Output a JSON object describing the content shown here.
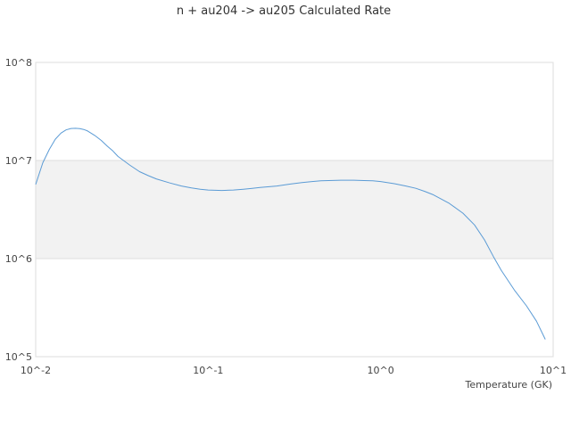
{
  "chart_data": {
    "type": "line",
    "title": "n + au204 -> au205 Calculated Rate",
    "xlabel": "Temperature (GK)",
    "ylabel": "",
    "x_scale": "log",
    "y_scale": "log",
    "xlim": [
      0.01,
      10
    ],
    "ylim": [
      100000,
      100000000
    ],
    "x_tick_labels": [
      "10^-2",
      "10^-1",
      "10^0",
      "10^1"
    ],
    "y_tick_labels": [
      "10^5",
      "10^6",
      "10^7",
      "10^8"
    ],
    "x_tick_values": [
      0.01,
      0.1,
      1,
      10
    ],
    "y_tick_values": [
      100000,
      1000000,
      10000000,
      100000000
    ],
    "alternate_band": [
      1000000,
      10000000
    ],
    "grid": true,
    "legend": "none",
    "colors": {
      "line": "#5b9bd5",
      "band": "#f2f2f2",
      "grid": "#dddddd"
    },
    "series": [
      {
        "x": [
          0.01,
          0.011,
          0.012,
          0.013,
          0.014,
          0.015,
          0.016,
          0.017,
          0.018,
          0.019,
          0.02,
          0.022,
          0.024,
          0.026,
          0.028,
          0.03,
          0.035,
          0.04,
          0.045,
          0.05,
          0.06,
          0.07,
          0.08,
          0.09,
          0.1,
          0.12,
          0.14,
          0.16,
          0.18,
          0.2,
          0.25,
          0.3,
          0.35,
          0.4,
          0.45,
          0.5,
          0.6,
          0.7,
          0.8,
          0.9,
          1.0,
          1.2,
          1.4,
          1.6,
          1.8,
          2.0,
          2.5,
          3.0,
          3.5,
          4.0,
          4.5,
          5.0,
          6.0,
          7.0,
          8.0,
          9.0
        ],
        "y": [
          5700000,
          9500000,
          13000000,
          16500000,
          19000000,
          20500000,
          21200000,
          21300000,
          21100000,
          20700000,
          20000000,
          18000000,
          16000000,
          14000000,
          12500000,
          11000000,
          9000000,
          7700000,
          7000000,
          6500000,
          5900000,
          5500000,
          5250000,
          5100000,
          5000000,
          4950000,
          5000000,
          5100000,
          5200000,
          5300000,
          5500000,
          5750000,
          5950000,
          6100000,
          6200000,
          6250000,
          6300000,
          6300000,
          6250000,
          6200000,
          6100000,
          5800000,
          5500000,
          5200000,
          4850000,
          4500000,
          3650000,
          2900000,
          2200000,
          1550000,
          1050000,
          760000,
          470000,
          330000,
          230000,
          150000
        ]
      }
    ]
  }
}
